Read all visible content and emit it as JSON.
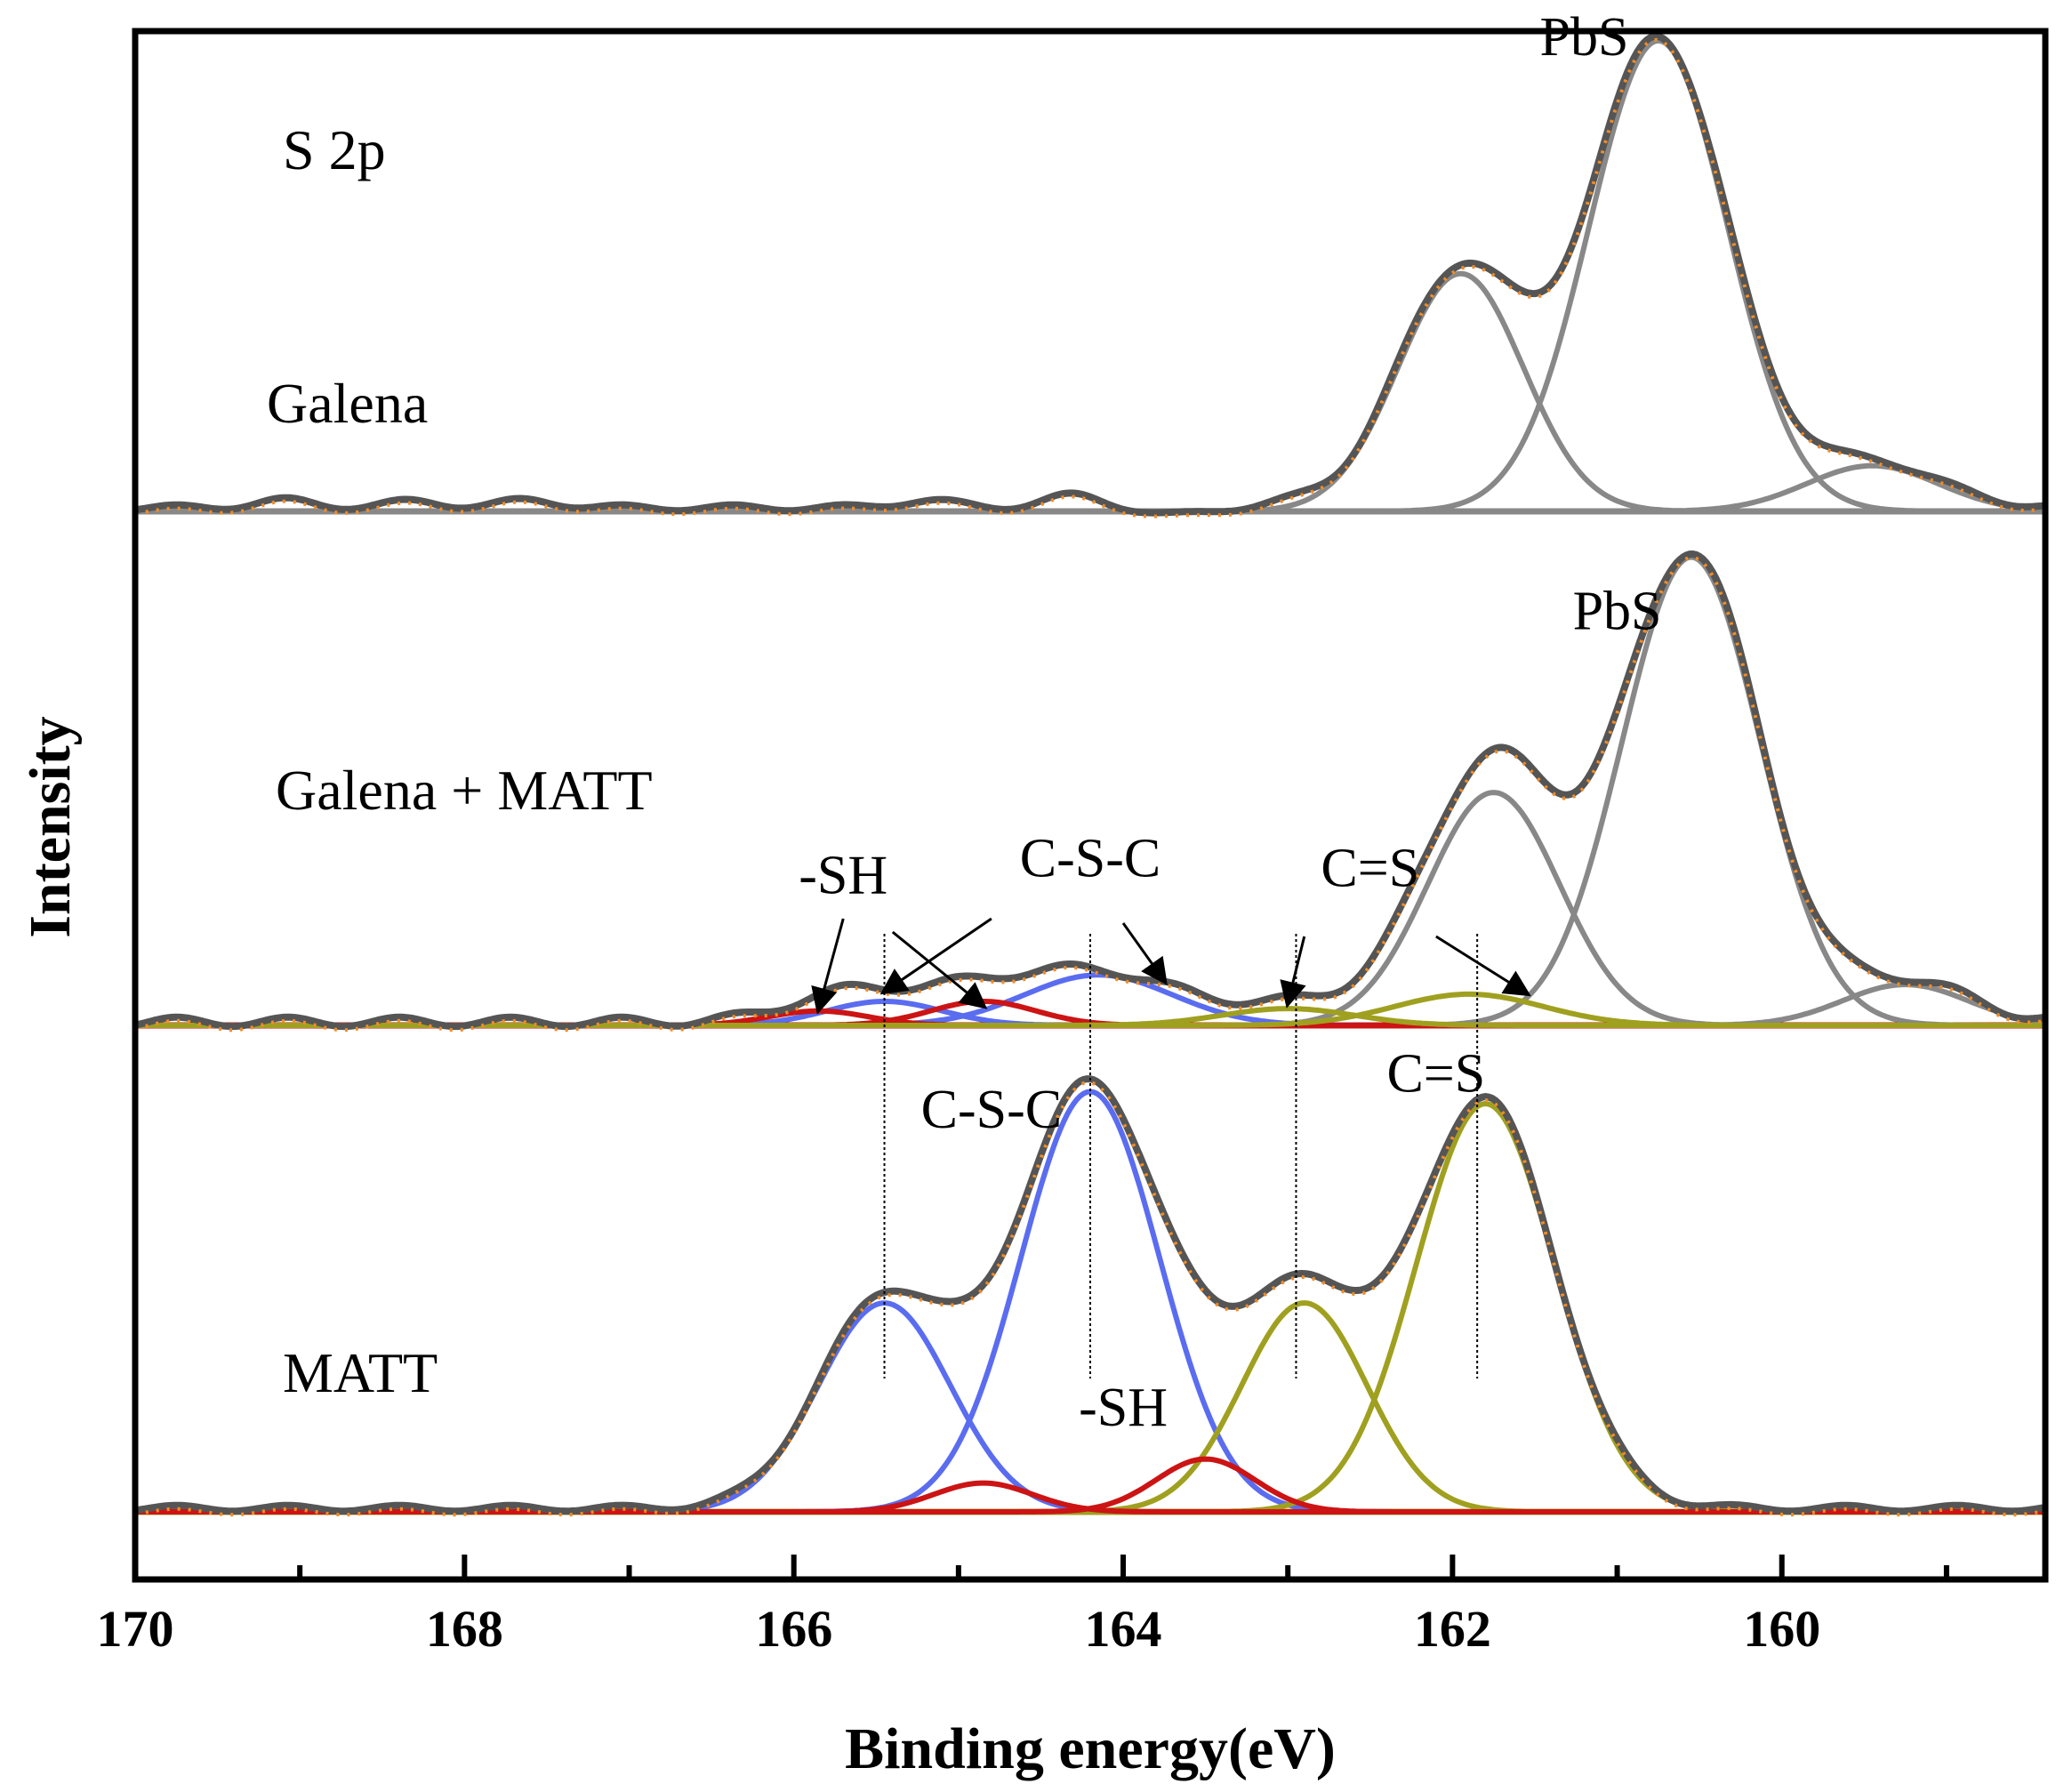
{
  "chart_data": {
    "type": "line",
    "title": "",
    "xlabel": "Binding energy(eV)",
    "ylabel": "Intensity",
    "xlim": [
      170,
      158.4
    ],
    "x_axis_reversed": true,
    "x_ticks": [
      170,
      168,
      166,
      164,
      162,
      160
    ],
    "x_tick_labels": [
      "170",
      "168",
      "166",
      "164",
      "162",
      "160"
    ],
    "x_minor_ticks": [
      169,
      167,
      165,
      163,
      161,
      159
    ],
    "colors": {
      "envelope": "#555555",
      "pbs": "#888888",
      "sh": "#cc1414",
      "csc": "#5a6cf0",
      "cs": "#a0a020",
      "fit_dots": "#f08c28",
      "frame": "#000000"
    },
    "panels": [
      {
        "id": "galena",
        "label": "Galena",
        "corner_label": "S 2p",
        "peak_annotations": [
          {
            "text": "PbS",
            "x": 161.2,
            "y": 1.9
          }
        ],
        "y_range": [
          0,
          2.15
        ],
        "components": [
          {
            "name": "PbS 2p3/2",
            "group": "pbs",
            "center": 160.75,
            "height": 1.96,
            "sigma": 0.42
          },
          {
            "name": "PbS 2p1/2",
            "group": "pbs",
            "center": 161.95,
            "height": 0.99,
            "sigma": 0.38
          },
          {
            "name": "PbS satellite",
            "group": "pbs",
            "center": 159.45,
            "height": 0.19,
            "sigma": 0.4
          }
        ],
        "envelope_noise": [
          {
            "x": 169.1,
            "y": 0.03
          },
          {
            "x": 168.3,
            "y": 0.025
          },
          {
            "x": 167.6,
            "y": 0.03
          },
          {
            "x": 166.7,
            "y": 0.0
          },
          {
            "x": 165.2,
            "y": 0.03
          },
          {
            "x": 164.3,
            "y": 0.05
          },
          {
            "x": 163.7,
            "y": -0.03
          },
          {
            "x": 162.9,
            "y": 0.02
          }
        ]
      },
      {
        "id": "galena-matt",
        "label": "Galena + MATT",
        "peak_annotations": [
          {
            "text": "PbS",
            "x": 161.0,
            "y": 1.65
          },
          {
            "text": "-SH",
            "x": 165.7,
            "y": 0.55
          },
          {
            "text": "C-S-C",
            "x": 164.2,
            "y": 0.62
          },
          {
            "text": "C=S",
            "x": 162.5,
            "y": 0.58
          }
        ],
        "y_range": [
          0,
          2.15
        ],
        "components": [
          {
            "name": "PbS 2p3/2",
            "group": "pbs",
            "center": 160.55,
            "height": 1.95,
            "sigma": 0.42
          },
          {
            "name": "PbS 2p1/2",
            "group": "pbs",
            "center": 161.75,
            "height": 0.97,
            "sigma": 0.4
          },
          {
            "name": "PbS satellite",
            "group": "pbs",
            "center": 159.25,
            "height": 0.17,
            "sigma": 0.38
          },
          {
            "name": "C-S-C (a)",
            "group": "csc",
            "center": 164.15,
            "height": 0.21,
            "sigma": 0.45
          },
          {
            "name": "C-S-C (b)",
            "group": "csc",
            "center": 165.45,
            "height": 0.1,
            "sigma": 0.35
          },
          {
            "name": "-SH (a)",
            "group": "sh",
            "center": 165.85,
            "height": 0.06,
            "sigma": 0.3
          },
          {
            "name": "-SH (b)",
            "group": "sh",
            "center": 164.85,
            "height": 0.1,
            "sigma": 0.32
          },
          {
            "name": "C=S (a)",
            "group": "cs",
            "center": 161.9,
            "height": 0.13,
            "sigma": 0.45
          },
          {
            "name": "C=S (b)",
            "group": "cs",
            "center": 163.0,
            "height": 0.07,
            "sigma": 0.4
          }
        ]
      },
      {
        "id": "matt",
        "label": "MATT",
        "peak_annotations": [
          {
            "text": "C-S-C",
            "x": 164.8,
            "y": 1.6
          },
          {
            "text": "C=S",
            "x": 162.1,
            "y": 1.75
          },
          {
            "text": "-SH",
            "x": 164.0,
            "y": 0.36
          }
        ],
        "y_range": [
          0,
          2.15
        ],
        "components": [
          {
            "name": "C-S-C (a)",
            "group": "csc",
            "center": 164.2,
            "height": 1.75,
            "sigma": 0.42
          },
          {
            "name": "C-S-C (b)",
            "group": "csc",
            "center": 165.45,
            "height": 0.87,
            "sigma": 0.4
          },
          {
            "name": "C=S (a)",
            "group": "cs",
            "center": 161.8,
            "height": 1.7,
            "sigma": 0.42
          },
          {
            "name": "C=S (b)",
            "group": "cs",
            "center": 162.9,
            "height": 0.87,
            "sigma": 0.38
          },
          {
            "name": "-SH (a)",
            "group": "sh",
            "center": 163.5,
            "height": 0.22,
            "sigma": 0.3
          },
          {
            "name": "-SH (b)",
            "group": "sh",
            "center": 164.85,
            "height": 0.12,
            "sigma": 0.3
          }
        ]
      }
    ],
    "reference_lines_ev": [
      165.45,
      164.2,
      162.95,
      161.85
    ]
  }
}
